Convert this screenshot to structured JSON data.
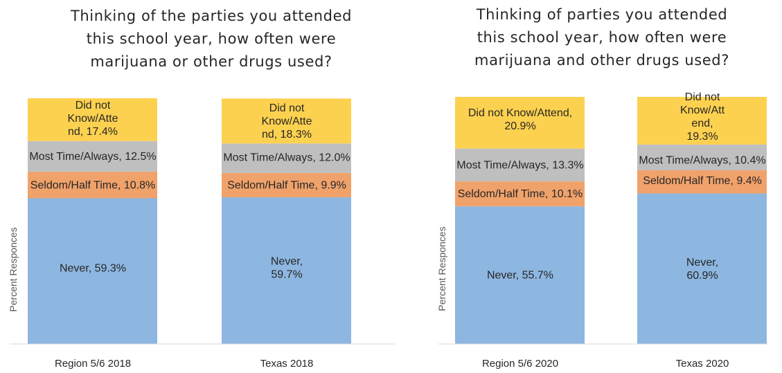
{
  "chart_data": [
    {
      "type": "bar",
      "stacked": true,
      "title_lines": [
        "Thinking of the parties you attended",
        "this school year, how often were",
        "marijuana or other drugs used?"
      ],
      "ylabel": "Percent Responces",
      "ylim": [
        0,
        100
      ],
      "categories": [
        "Region 5/6 2018",
        "Texas 2018"
      ],
      "series": [
        {
          "name": "Never",
          "color": "#8db6e0",
          "values": [
            59.3,
            59.7
          ],
          "labels": [
            [
              "Never, 59.3%"
            ],
            [
              "Never,",
              "59.7%"
            ]
          ]
        },
        {
          "name": "Seldom/Half Time",
          "color": "#f0a26b",
          "values": [
            10.8,
            9.9
          ],
          "labels": [
            [
              "Seldom/Half Time, 10.8%"
            ],
            [
              "Seldom/Half Time, 9.9%"
            ]
          ]
        },
        {
          "name": "Most Time/Always",
          "color": "#bfbfbf",
          "values": [
            12.5,
            12.0
          ],
          "labels": [
            [
              "Most Time/Always, 12.5%"
            ],
            [
              "Most Time/Always, 12.0%"
            ]
          ]
        },
        {
          "name": "Did not Know/Attend",
          "color": "#fdd150",
          "values": [
            17.4,
            18.3
          ],
          "labels": [
            [
              "Did not",
              "Know/Atte",
              "nd, 17.4%"
            ],
            [
              "Did not",
              "Know/Atte",
              "nd, 18.3%"
            ]
          ]
        }
      ]
    },
    {
      "type": "bar",
      "stacked": true,
      "title_lines": [
        "Thinking of parties you attended",
        "this school year, how often were",
        "marijuana and other drugs used?"
      ],
      "ylabel": "Percent Responces",
      "ylim": [
        0,
        100
      ],
      "categories": [
        "Region 5/6 2020",
        "Texas 2020"
      ],
      "series": [
        {
          "name": "Never",
          "color": "#8db6e0",
          "values": [
            55.7,
            60.9
          ],
          "labels": [
            [
              "Never, 55.7%"
            ],
            [
              "Never,",
              "60.9%"
            ]
          ]
        },
        {
          "name": "Seldom/Half Time",
          "color": "#f0a26b",
          "values": [
            10.1,
            9.4
          ],
          "labels": [
            [
              "Seldom/Half Time, 10.1%"
            ],
            [
              "Seldom/Half Time, 9.4%"
            ]
          ]
        },
        {
          "name": "Most Time/Always",
          "color": "#bfbfbf",
          "values": [
            13.3,
            10.4
          ],
          "labels": [
            [
              "Most Time/Always, 13.3%"
            ],
            [
              "Most Time/Always, 10.4%"
            ]
          ]
        },
        {
          "name": "Did not Know/Attend",
          "color": "#fdd150",
          "values": [
            20.9,
            19.3
          ],
          "labels": [
            [
              "Did not Know/Attend,",
              "20.9%"
            ],
            [
              "Did not",
              "Know/Att",
              "end,",
              "19.3%"
            ]
          ]
        }
      ]
    }
  ]
}
